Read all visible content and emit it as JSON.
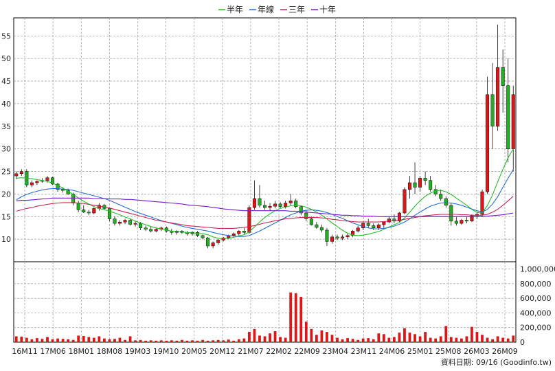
{
  "chart_data": {
    "type": "candlestick",
    "legend": [
      {
        "label": "半年",
        "color": "#22c022"
      },
      {
        "label": "年線",
        "color": "#1f6fd6"
      },
      {
        "label": "三年",
        "color": "#cc2255"
      },
      {
        "label": "十年",
        "color": "#7a18c8"
      }
    ],
    "x_tick_labels": [
      "16M11",
      "17M06",
      "18M01",
      "18M08",
      "19M03",
      "19M10",
      "20M05",
      "20M12",
      "21M07",
      "22M02",
      "22M09",
      "23M04",
      "23M11",
      "24M06",
      "25M01",
      "25M08",
      "26M03",
      "26M09"
    ],
    "price_axis": {
      "ticks": [
        10,
        15,
        20,
        25,
        30,
        35,
        40,
        45,
        50,
        55
      ],
      "range": [
        5,
        59
      ]
    },
    "volume_axis": {
      "ticks": [
        "0",
        "200,000",
        "400,000",
        "600,000",
        "800,000",
        "1,000,000"
      ],
      "range": [
        0,
        1100000
      ]
    },
    "footer": "資料日期: 09/16  (Goodinfo.tw)",
    "candles": [
      [
        24,
        25,
        23.3,
        24.5
      ],
      [
        24.5,
        25.5,
        24,
        25
      ],
      [
        25,
        25.5,
        21.5,
        22
      ],
      [
        22,
        23,
        21.5,
        22.5
      ],
      [
        22.5,
        23,
        22,
        22.8
      ],
      [
        22.8,
        23.5,
        22.5,
        23
      ],
      [
        23,
        24,
        22.5,
        23.6
      ],
      [
        23.6,
        23.8,
        22,
        22.2
      ],
      [
        22.2,
        22.5,
        20.5,
        21
      ],
      [
        21,
        21.5,
        20.3,
        20.8
      ],
      [
        20.8,
        21.2,
        19.8,
        20
      ],
      [
        20,
        20.3,
        17.5,
        18
      ],
      [
        18,
        18.5,
        16,
        16.5
      ],
      [
        16.5,
        17.5,
        15.8,
        16
      ],
      [
        16,
        16.5,
        15.3,
        15.8
      ],
      [
        15.8,
        17,
        15.5,
        16.8
      ],
      [
        16.8,
        18,
        16.3,
        17.5
      ],
      [
        17.5,
        17.8,
        16.5,
        16.8
      ],
      [
        16.8,
        17,
        14,
        14.5
      ],
      [
        14.5,
        15,
        13,
        13.5
      ],
      [
        13.5,
        14.2,
        13,
        13.8
      ],
      [
        13.8,
        14.5,
        13.3,
        14.2
      ],
      [
        14.2,
        14.5,
        13,
        13.3
      ],
      [
        13.3,
        14,
        12.8,
        13.5
      ],
      [
        13.5,
        13.8,
        12,
        12.5
      ],
      [
        12.5,
        13,
        11.8,
        12.2
      ],
      [
        12.2,
        12.8,
        11.5,
        11.8
      ],
      [
        11.8,
        12.5,
        11.5,
        12.2
      ],
      [
        12.2,
        12.8,
        11.8,
        12.5
      ],
      [
        12.5,
        12.8,
        11.5,
        11.8
      ],
      [
        11.8,
        12.3,
        11,
        11.5
      ],
      [
        11.5,
        12,
        11,
        11.8
      ],
      [
        11.8,
        12,
        11.2,
        11.5
      ],
      [
        11.5,
        11.8,
        10.8,
        11.2
      ],
      [
        11.2,
        11.8,
        10.8,
        11.5
      ],
      [
        11.5,
        11.8,
        10.5,
        10.8
      ],
      [
        10.8,
        11,
        10,
        10.3
      ],
      [
        10.3,
        10.5,
        8,
        8.5
      ],
      [
        8.5,
        9.5,
        8,
        9.2
      ],
      [
        9.2,
        10,
        8.8,
        9.8
      ],
      [
        9.8,
        10.5,
        9.5,
        10.3
      ],
      [
        10.3,
        11,
        10,
        10.8
      ],
      [
        10.8,
        11.5,
        10.5,
        11.2
      ],
      [
        11.2,
        12,
        10.8,
        11.8
      ],
      [
        11.8,
        12.5,
        11,
        11.5
      ],
      [
        11.5,
        17.5,
        11.2,
        17
      ],
      [
        17,
        23,
        16.5,
        19
      ],
      [
        19,
        22,
        17,
        17.5
      ],
      [
        17.5,
        18.5,
        16.5,
        17
      ],
      [
        17,
        18,
        16.3,
        17.3
      ],
      [
        17.3,
        18.5,
        16.8,
        17.8
      ],
      [
        17.8,
        18.2,
        16.8,
        17.2
      ],
      [
        17.2,
        18.5,
        16.8,
        18
      ],
      [
        18,
        20,
        17.5,
        18.5
      ],
      [
        18.5,
        19,
        16.8,
        17.2
      ],
      [
        17.2,
        17.5,
        15.3,
        15.8
      ],
      [
        15.8,
        16.5,
        14,
        14.5
      ],
      [
        14.5,
        15,
        13,
        13.2
      ],
      [
        13.2,
        13.8,
        12.3,
        12.6
      ],
      [
        12.6,
        13.2,
        11.5,
        12
      ],
      [
        12,
        12.5,
        8.5,
        9.5
      ],
      [
        9.5,
        11,
        9,
        10.5
      ],
      [
        10.5,
        11,
        9.8,
        10.2
      ],
      [
        10.2,
        11,
        9.8,
        10.5
      ],
      [
        10.5,
        11.2,
        10,
        10.8
      ],
      [
        10.8,
        12,
        10.5,
        11.8
      ],
      [
        11.8,
        13,
        11.5,
        12.5
      ],
      [
        12.5,
        14,
        12,
        13.5
      ],
      [
        13.5,
        14.5,
        12.5,
        13
      ],
      [
        13,
        13.5,
        12,
        12.5
      ],
      [
        12.5,
        13.5,
        12,
        13.2
      ],
      [
        13.2,
        14,
        12.5,
        13.8
      ],
      [
        13.8,
        15,
        13.5,
        14.5
      ],
      [
        14.5,
        15.5,
        13.5,
        14
      ],
      [
        14,
        16,
        13.8,
        15.8
      ],
      [
        15.8,
        21.5,
        15.5,
        21
      ],
      [
        21,
        24,
        19,
        22.5
      ],
      [
        22.5,
        27,
        20,
        21.5
      ],
      [
        21.5,
        24,
        20.5,
        23.5
      ],
      [
        23.5,
        25,
        22,
        23
      ],
      [
        23,
        24,
        20.5,
        21
      ],
      [
        21,
        22,
        19.5,
        20
      ],
      [
        20,
        21,
        18.5,
        19
      ],
      [
        19,
        19.5,
        17,
        17.5
      ],
      [
        17.5,
        18,
        13,
        14
      ],
      [
        14,
        15,
        13,
        13.5
      ],
      [
        13.5,
        14.5,
        13.2,
        14.2
      ],
      [
        14.2,
        15,
        13.5,
        14
      ],
      [
        14,
        15.5,
        13.8,
        15.2
      ],
      [
        15.2,
        16,
        14.5,
        15.5
      ],
      [
        15.5,
        21,
        15,
        20.5
      ],
      [
        20.5,
        46,
        20,
        42
      ],
      [
        42,
        49,
        30,
        35
      ],
      [
        35,
        57.5,
        34,
        48
      ],
      [
        48,
        52,
        38,
        44
      ],
      [
        44,
        50,
        27,
        30
      ],
      [
        30,
        44,
        25,
        42
      ]
    ],
    "ma_half_year": [
      23.5,
      23.6,
      23.5,
      23.4,
      23.2,
      23.0,
      22.8,
      22.4,
      21.9,
      21.3,
      20.6,
      19.9,
      19.1,
      18.4,
      17.8,
      17.2,
      16.8,
      16.5,
      16.2,
      15.8,
      15.4,
      14.9,
      14.5,
      14.0,
      13.6,
      13.2,
      12.8,
      12.5,
      12.2,
      12.0,
      11.8,
      11.7,
      11.6,
      11.5,
      11.4,
      11.3,
      11.2,
      11.0,
      10.5,
      10.2,
      10.1,
      10.2,
      10.4,
      10.7,
      11.0,
      11.6,
      12.7,
      13.8,
      14.8,
      15.6,
      16.3,
      16.8,
      17.1,
      17.4,
      17.5,
      17.4,
      17.1,
      16.6,
      16.0,
      15.3,
      14.5,
      13.6,
      12.8,
      12.0,
      11.3,
      10.9,
      10.8,
      10.9,
      11.1,
      11.4,
      11.7,
      12.2,
      12.7,
      13.2,
      13.7,
      14.7,
      16.0,
      17.3,
      18.5,
      19.5,
      20.2,
      20.7,
      20.8,
      20.5,
      19.9,
      19.1,
      18.3,
      17.5,
      16.6,
      15.9,
      15.8,
      17.5,
      19.8,
      22.7,
      25.5,
      28.0,
      30.0
    ],
    "ma_year": [
      18.7,
      19.4,
      19.9,
      20.3,
      20.6,
      20.9,
      21.1,
      21.2,
      21.2,
      21.1,
      21.0,
      20.8,
      20.5,
      20.2,
      19.9,
      19.6,
      19.3,
      19.0,
      18.6,
      18.1,
      17.6,
      17.1,
      16.6,
      16.1,
      15.7,
      15.3,
      14.9,
      14.5,
      14.1,
      13.8,
      13.5,
      13.2,
      12.9,
      12.6,
      12.4,
      12.2,
      12.0,
      11.8,
      11.5,
      11.2,
      11.0,
      10.8,
      10.7,
      10.6,
      10.6,
      10.8,
      11.3,
      11.8,
      12.4,
      13.0,
      13.6,
      14.2,
      14.8,
      15.4,
      15.8,
      16.2,
      16.4,
      16.5,
      16.4,
      16.2,
      15.9,
      15.5,
      15.0,
      14.6,
      14.1,
      13.6,
      13.2,
      12.8,
      12.5,
      12.3,
      12.3,
      12.4,
      12.6,
      12.9,
      13.3,
      13.8,
      14.5,
      15.3,
      16.0,
      16.7,
      17.3,
      17.7,
      18.0,
      18.1,
      18.0,
      17.8,
      17.5,
      17.1,
      16.7,
      16.3,
      16.0,
      16.6,
      17.8,
      19.4,
      21.5,
      23.5,
      25.4
    ],
    "ma_3year": [
      16.2,
      16.5,
      16.8,
      17.0,
      17.3,
      17.5,
      17.7,
      17.9,
      18.0,
      18.1,
      18.1,
      18.1,
      18.0,
      17.9,
      17.7,
      17.5,
      17.3,
      17.1,
      16.9,
      16.6,
      16.3,
      16.0,
      15.7,
      15.4,
      15.1,
      14.8,
      14.5,
      14.2,
      14.0,
      13.8,
      13.6,
      13.4,
      13.2,
      13.0,
      12.9,
      12.8,
      12.7,
      12.6,
      12.5,
      12.4,
      12.4,
      12.4,
      12.4,
      12.5,
      12.6,
      12.8,
      13.0,
      13.3,
      13.6,
      13.8,
      14.1,
      14.3,
      14.5,
      14.6,
      14.7,
      14.8,
      14.8,
      14.8,
      14.8,
      14.7,
      14.6,
      14.4,
      14.3,
      14.1,
      14.0,
      13.9,
      13.8,
      13.8,
      13.8,
      13.8,
      13.8,
      13.9,
      14.0,
      14.1,
      14.2,
      14.4,
      14.6,
      14.8,
      15.0,
      15.2,
      15.3,
      15.4,
      15.5,
      15.5,
      15.5,
      15.5,
      15.4,
      15.4,
      15.3,
      15.3,
      15.3,
      15.5,
      16.0,
      16.6,
      17.5,
      18.5,
      19.5
    ],
    "ma_10year": [
      18.5,
      18.6,
      18.6,
      18.7,
      18.8,
      18.9,
      19.0,
      19.1,
      19.1,
      19.1,
      19.1,
      19.1,
      19.1,
      19.1,
      19.1,
      19.0,
      19.0,
      19.0,
      18.9,
      18.9,
      18.9,
      18.8,
      18.8,
      18.7,
      18.6,
      18.5,
      18.4,
      18.3,
      18.2,
      18.1,
      18.0,
      17.9,
      17.8,
      17.6,
      17.5,
      17.4,
      17.3,
      17.2,
      17.0,
      16.9,
      16.7,
      16.6,
      16.5,
      16.4,
      16.3,
      16.3,
      16.3,
      16.3,
      16.3,
      16.3,
      16.3,
      16.3,
      16.3,
      16.2,
      16.2,
      16.1,
      16.0,
      15.9,
      15.8,
      15.7,
      15.6,
      15.5,
      15.4,
      15.3,
      15.3,
      15.2,
      15.2,
      15.1,
      15.1,
      15.1,
      15.0,
      15.0,
      15.0,
      15.0,
      15.0,
      15.0,
      15.0,
      15.0,
      15.0,
      15.0,
      15.0,
      15.0,
      15.0,
      15.0,
      15.0,
      15.0,
      15.0,
      15.0,
      15.0,
      15.0,
      15.0,
      15.1,
      15.2,
      15.3,
      15.4,
      15.6,
      15.8
    ],
    "volume": [
      80000,
      75000,
      60000,
      40000,
      55000,
      45000,
      70000,
      40000,
      50000,
      45000,
      40000,
      30000,
      90000,
      85000,
      70000,
      60000,
      80000,
      50000,
      40000,
      45000,
      60000,
      30000,
      80000,
      25000,
      30000,
      20000,
      25000,
      20000,
      25000,
      20000,
      25000,
      20000,
      30000,
      20000,
      25000,
      20000,
      30000,
      20000,
      25000,
      30000,
      25000,
      35000,
      20000,
      40000,
      50000,
      140000,
      180000,
      90000,
      80000,
      120000,
      150000,
      70000,
      60000,
      680000,
      670000,
      620000,
      280000,
      180000,
      100000,
      160000,
      140000,
      100000,
      60000,
      40000,
      55000,
      45000,
      30000,
      50000,
      55000,
      40000,
      120000,
      110000,
      60000,
      70000,
      130000,
      190000,
      130000,
      110000,
      80000,
      140000,
      60000,
      50000,
      80000,
      220000,
      70000,
      60000,
      50000,
      80000,
      210000,
      140000,
      100000,
      60000,
      40000,
      80000,
      60000,
      50000,
      90000
    ]
  }
}
